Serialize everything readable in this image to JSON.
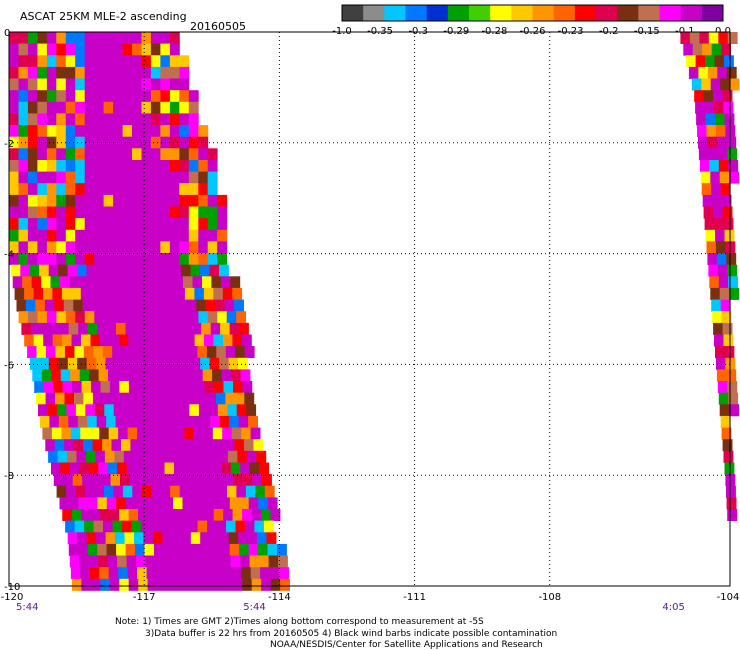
{
  "header": {
    "title": "ASCAT 25KM MLE-2 ascending",
    "date": "20160505"
  },
  "colorbar": {
    "colors": [
      "#404040",
      "#8c8c8c",
      "#00c8ff",
      "#0078ff",
      "#0030d0",
      "#00a000",
      "#40d000",
      "#ffff00",
      "#ffc800",
      "#ff9600",
      "#ff6400",
      "#ff0000",
      "#e00050",
      "#7a3010",
      "#c07050",
      "#ff00ff",
      "#c800c8",
      "#8000a0"
    ],
    "labels": [
      "-1.0",
      "-0.35",
      "-0.3",
      "-0.29",
      "-0.28",
      "-0.26",
      "-0.23",
      "-0.2",
      "-0.15",
      "-0.1",
      "0.0"
    ]
  },
  "map": {
    "lon_range": [
      -120,
      -104
    ],
    "lat_range": [
      -10,
      0
    ],
    "x_ticks": [
      "-120",
      "-117",
      "-114",
      "-111",
      "-108",
      "-104"
    ],
    "y_ticks": [
      "0",
      "-2",
      "-4",
      "-6",
      "-8",
      "-10"
    ],
    "x_tick_values": [
      -120,
      -117,
      -114,
      -111,
      -108,
      -104
    ],
    "y_tick_values": [
      0,
      -2,
      -4,
      -6,
      -8,
      -10
    ],
    "palette": [
      "#c800c8",
      "#ff0000",
      "#ff6400",
      "#ffc800",
      "#ffff00",
      "#7a3010",
      "#c07050",
      "#e00050",
      "#ff00ff",
      "#00a000",
      "#0078ff",
      "#00c8ff",
      "#ff9600"
    ]
  },
  "swaths": {
    "west_rows": [
      {
        "lat": 0.0,
        "lon_start": -120.0,
        "lon_end": -116.3
      },
      {
        "lat": -1.0,
        "lon_start": -120.0,
        "lon_end": -116.0
      },
      {
        "lat": -2.0,
        "lon_start": -120.0,
        "lon_end": -115.6
      },
      {
        "lat": -3.0,
        "lon_start": -120.0,
        "lon_end": -115.3
      },
      {
        "lat": -4.0,
        "lon_start": -120.0,
        "lon_end": -115.2
      },
      {
        "lat": -5.0,
        "lon_start": -119.8,
        "lon_end": -114.9
      },
      {
        "lat": -6.0,
        "lon_start": -119.5,
        "lon_end": -114.7
      },
      {
        "lat": -7.0,
        "lon_start": -119.3,
        "lon_end": -114.6
      },
      {
        "lat": -8.0,
        "lon_start": -119.0,
        "lon_end": -114.3
      },
      {
        "lat": -9.0,
        "lon_start": -118.7,
        "lon_end": -114.1
      },
      {
        "lat": -9.9,
        "lon_start": -118.6,
        "lon_end": -113.9
      }
    ],
    "east_rows": [
      {
        "lat": 0.0,
        "lon_start": -105.1,
        "lon_end": -104.0
      },
      {
        "lat": -1.0,
        "lon_start": -104.8,
        "lon_end": -104.0
      },
      {
        "lat": -2.0,
        "lon_start": -104.7,
        "lon_end": -104.0
      },
      {
        "lat": -3.0,
        "lon_start": -104.6,
        "lon_end": -104.0
      },
      {
        "lat": -4.0,
        "lon_start": -104.5,
        "lon_end": -104.0
      },
      {
        "lat": -5.0,
        "lon_start": -104.4,
        "lon_end": -104.0
      },
      {
        "lat": -6.0,
        "lon_start": -104.3,
        "lon_end": -104.0
      },
      {
        "lat": -7.0,
        "lon_start": -104.2,
        "lon_end": -104.0
      },
      {
        "lat": -8.0,
        "lon_start": -104.1,
        "lon_end": -104.0
      },
      {
        "lat": -8.8,
        "lon_start": -104.05,
        "lon_end": -104.0
      }
    ]
  },
  "times": [
    {
      "label": "5:44",
      "lon": -120
    },
    {
      "label": "5:44",
      "lon": -114.8
    },
    {
      "label": "4:05",
      "lon": -105.5
    }
  ],
  "notes": {
    "line1": "Note: 1) Times are GMT 2)Times along bottom correspond to measurement at -5S",
    "line2": "3)Data buffer is 22 hrs from 20160505 4) Black wind barbs indicate possible contamination",
    "line3": "NOAA/NESDIS/Center for Satellite Applications and Research"
  }
}
